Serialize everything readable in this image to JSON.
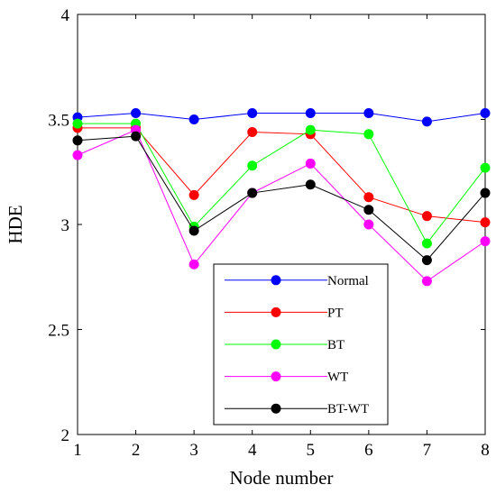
{
  "chart_data": {
    "type": "line",
    "xlabel": "Node number",
    "ylabel": "HDE",
    "xlim": [
      1,
      8
    ],
    "ylim": [
      2,
      4
    ],
    "x": [
      1,
      2,
      3,
      4,
      5,
      6,
      7,
      8
    ],
    "xticks": [
      "1",
      "2",
      "3",
      "4",
      "5",
      "6",
      "7",
      "8"
    ],
    "yticks": [
      "2",
      "2.5",
      "3",
      "3.5",
      "4"
    ],
    "grid": false,
    "legend_position": "bottom-right",
    "series": [
      {
        "name": "Normal",
        "color": "#0000ff",
        "values": [
          3.51,
          3.53,
          3.5,
          3.53,
          3.53,
          3.53,
          3.49,
          3.53
        ]
      },
      {
        "name": "PT",
        "color": "#ff0000",
        "values": [
          3.46,
          3.46,
          3.14,
          3.44,
          3.43,
          3.13,
          3.04,
          3.01
        ]
      },
      {
        "name": "BT",
        "color": "#00ff00",
        "values": [
          3.48,
          3.48,
          2.99,
          3.28,
          3.45,
          3.43,
          2.91,
          3.27
        ]
      },
      {
        "name": "WT",
        "color": "#ff00ff",
        "values": [
          3.33,
          3.45,
          2.81,
          3.15,
          3.29,
          3.0,
          2.73,
          2.92
        ]
      },
      {
        "name": "BT-WT",
        "color": "#000000",
        "values": [
          3.4,
          3.42,
          2.97,
          3.15,
          3.19,
          3.07,
          2.83,
          3.15
        ]
      }
    ]
  }
}
